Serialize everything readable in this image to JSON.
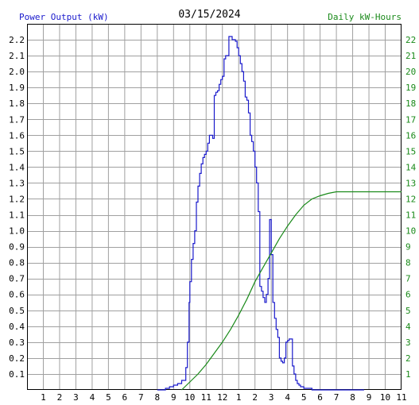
{
  "titles": {
    "left_axis": "Power Output (kW)",
    "date": "03/15/2024",
    "right_axis": "Daily kW-Hours"
  },
  "colors": {
    "power": "#1a1acc",
    "energy": "#1a8a1a",
    "grid": "#a0a0a0",
    "frame": "#000000"
  },
  "chart_data": {
    "type": "line",
    "x_unit": "hour of day (0 = midnight, 12 = noon)",
    "xlim": [
      0,
      23
    ],
    "x_ticks": [
      {
        "x": 1,
        "label": "1"
      },
      {
        "x": 2,
        "label": "2"
      },
      {
        "x": 3,
        "label": "3"
      },
      {
        "x": 4,
        "label": "4"
      },
      {
        "x": 5,
        "label": "5"
      },
      {
        "x": 6,
        "label": "6"
      },
      {
        "x": 7,
        "label": "7"
      },
      {
        "x": 8,
        "label": "8"
      },
      {
        "x": 9,
        "label": "9"
      },
      {
        "x": 10,
        "label": "10"
      },
      {
        "x": 11,
        "label": "11"
      },
      {
        "x": 12,
        "label": "12"
      },
      {
        "x": 13,
        "label": "1"
      },
      {
        "x": 14,
        "label": "2"
      },
      {
        "x": 15,
        "label": "3"
      },
      {
        "x": 16,
        "label": "4"
      },
      {
        "x": 17,
        "label": "5"
      },
      {
        "x": 18,
        "label": "6"
      },
      {
        "x": 19,
        "label": "7"
      },
      {
        "x": 20,
        "label": "8"
      },
      {
        "x": 21,
        "label": "9"
      },
      {
        "x": 22,
        "label": "10"
      },
      {
        "x": 23,
        "label": "11"
      }
    ],
    "y_left": {
      "label": "Power Output (kW)",
      "min": 0,
      "max": 2.3,
      "ticks": [
        "0.1",
        "0.2",
        "0.3",
        "0.4",
        "0.5",
        "0.6",
        "0.7",
        "0.8",
        "0.9",
        "1.0",
        "1.1",
        "1.2",
        "1.3",
        "1.4",
        "1.5",
        "1.6",
        "1.7",
        "1.8",
        "1.9",
        "2.0",
        "2.1",
        "2.2"
      ]
    },
    "y_right": {
      "label": "Daily kW-Hours",
      "min": 0,
      "max": 23,
      "ticks": [
        "1",
        "2",
        "3",
        "4",
        "5",
        "6",
        "7",
        "8",
        "9",
        "10",
        "11",
        "12",
        "13",
        "14",
        "15",
        "16",
        "17",
        "18",
        "19",
        "20",
        "21",
        "22"
      ]
    },
    "grid": true,
    "series": [
      {
        "name": "Power Output (kW)",
        "axis": "left",
        "step": true,
        "x": [
          8.0,
          8.5,
          8.75,
          9.0,
          9.25,
          9.5,
          9.75,
          9.85,
          9.95,
          10.0,
          10.1,
          10.2,
          10.3,
          10.4,
          10.5,
          10.6,
          10.7,
          10.8,
          10.9,
          11.0,
          11.1,
          11.2,
          11.3,
          11.4,
          11.5,
          11.6,
          11.7,
          11.8,
          11.9,
          12.0,
          12.1,
          12.2,
          12.3,
          12.4,
          12.5,
          12.6,
          12.7,
          12.8,
          12.9,
          13.0,
          13.1,
          13.2,
          13.3,
          13.4,
          13.5,
          13.6,
          13.7,
          13.8,
          13.9,
          14.0,
          14.1,
          14.2,
          14.3,
          14.4,
          14.5,
          14.6,
          14.7,
          14.8,
          14.9,
          15.0,
          15.1,
          15.2,
          15.3,
          15.4,
          15.5,
          15.6,
          15.7,
          15.8,
          15.9,
          16.0,
          16.1,
          16.2,
          16.3,
          16.4,
          16.5,
          16.6,
          16.7,
          16.8,
          16.9,
          17.0,
          17.1,
          17.2,
          17.3,
          17.4,
          17.5,
          17.6,
          17.7,
          17.8,
          17.9,
          18.0,
          18.1,
          18.2,
          18.3,
          18.4,
          18.5,
          18.6,
          18.7,
          18.8,
          18.9,
          19.0,
          19.1,
          19.2,
          19.3,
          19.4,
          19.6,
          19.8,
          20.0,
          20.5,
          20.7
        ],
        "values": [
          0.0,
          0.01,
          0.02,
          0.03,
          0.04,
          0.06,
          0.14,
          0.3,
          0.55,
          0.68,
          0.82,
          0.92,
          1.0,
          1.18,
          1.28,
          1.36,
          1.42,
          1.46,
          1.48,
          1.5,
          1.55,
          1.6,
          1.6,
          1.58,
          1.85,
          1.87,
          1.88,
          1.92,
          1.95,
          1.97,
          2.08,
          2.1,
          2.1,
          2.22,
          2.22,
          2.2,
          2.2,
          2.19,
          2.15,
          2.1,
          2.05,
          2.0,
          1.94,
          1.84,
          1.82,
          1.74,
          1.6,
          1.56,
          1.5,
          1.4,
          1.3,
          1.12,
          0.65,
          0.62,
          0.58,
          0.55,
          0.6,
          0.7,
          1.07,
          0.85,
          0.55,
          0.45,
          0.38,
          0.33,
          0.2,
          0.18,
          0.17,
          0.2,
          0.3,
          0.31,
          0.32,
          0.32,
          0.15,
          0.1,
          0.06,
          0.04,
          0.03,
          0.02,
          0.02,
          0.01,
          0.01,
          0.01,
          0.01,
          0.01,
          0.0,
          0.0,
          0.0,
          0.0,
          0.0,
          0.0,
          0.0,
          0.0,
          0.0,
          0.0,
          0.0,
          0.0,
          0.0,
          0.0,
          0.0,
          0.0,
          0.0,
          0.0,
          0.0,
          0.0,
          0.0,
          0.0,
          0.0,
          0.0,
          0.0
        ]
      },
      {
        "name": "Daily kW-Hours",
        "axis": "right",
        "step": false,
        "x": [
          9.5,
          10.0,
          10.5,
          11.0,
          11.5,
          12.0,
          12.5,
          13.0,
          13.5,
          14.0,
          14.5,
          15.0,
          15.5,
          16.0,
          16.5,
          17.0,
          17.5,
          18.0,
          18.5,
          19.0,
          19.5,
          20.0,
          21.0,
          22.0,
          23.0
        ],
        "values": [
          0.0,
          0.5,
          1.0,
          1.6,
          2.3,
          3.0,
          3.8,
          4.7,
          5.7,
          6.8,
          7.7,
          8.6,
          9.5,
          10.3,
          11.0,
          11.6,
          12.0,
          12.2,
          12.35,
          12.45,
          12.45,
          12.45,
          12.45,
          12.45,
          12.45
        ]
      }
    ]
  }
}
